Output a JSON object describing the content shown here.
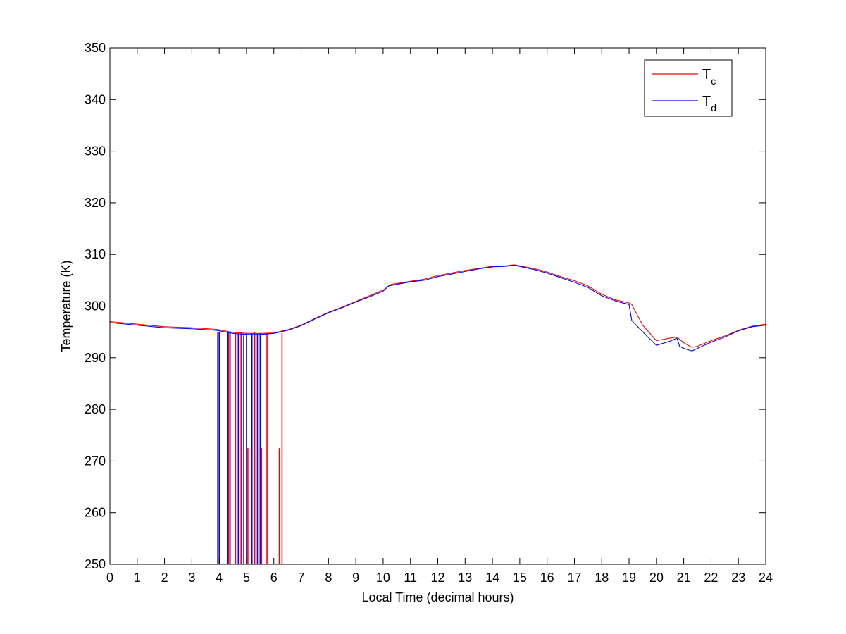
{
  "chart_data": {
    "type": "line",
    "xlabel": "Local Time (decimal hours)",
    "ylabel": "Temperature (K)",
    "xlim": [
      0,
      24
    ],
    "ylim": [
      250,
      350
    ],
    "xticks": [
      0,
      1,
      2,
      3,
      4,
      5,
      6,
      7,
      8,
      9,
      10,
      11,
      12,
      13,
      14,
      15,
      16,
      17,
      18,
      19,
      20,
      21,
      22,
      23,
      24
    ],
    "yticks": [
      250,
      260,
      270,
      280,
      290,
      300,
      310,
      320,
      330,
      340,
      350
    ],
    "grid": false,
    "legend_position": "top-right",
    "series": [
      {
        "name": "T",
        "name_subscript": "c",
        "color": "#ff0000",
        "x": [
          0,
          1,
          2,
          3,
          3.9,
          4.5,
          5,
          5.5,
          6,
          6.5,
          7,
          7.5,
          8,
          8.5,
          9,
          9.5,
          10,
          10.3,
          11,
          11.5,
          12,
          12.5,
          13,
          13.5,
          14,
          14.5,
          14.8,
          15.5,
          16,
          16.5,
          17,
          17.5,
          18,
          18.5,
          19,
          19.1,
          19.5,
          20,
          20.5,
          20.75,
          21,
          21.3,
          21.5,
          22,
          22.5,
          23,
          23.5,
          24
        ],
        "y": [
          297,
          296.5,
          296,
          295.8,
          295.5,
          294.9,
          294.7,
          294.7,
          294.8,
          295.4,
          296.3,
          297.6,
          298.8,
          299.8,
          300.9,
          302,
          303.1,
          304.2,
          304.8,
          305.2,
          305.9,
          306.4,
          306.9,
          307.3,
          307.7,
          307.8,
          308,
          307.3,
          306.6,
          305.7,
          304.9,
          303.9,
          302.3,
          301.2,
          300.6,
          300.3,
          296.3,
          293.3,
          293.8,
          294,
          292.9,
          292,
          292.2,
          293.3,
          294.2,
          295.3,
          296.1,
          296.5
        ],
        "dropouts": [
          {
            "x": 3.95,
            "y": 295
          },
          {
            "x": 4.35,
            "y": 295
          },
          {
            "x": 4.6,
            "y": 295
          },
          {
            "x": 4.8,
            "y": 295
          },
          {
            "x": 5.05,
            "y": 272.5
          },
          {
            "x": 5.3,
            "y": 295
          },
          {
            "x": 5.55,
            "y": 272.5
          },
          {
            "x": 5.75,
            "y": 294.7
          },
          {
            "x": 6.2,
            "y": 272.5
          },
          {
            "x": 6.3,
            "y": 294.8
          }
        ]
      },
      {
        "name": "T",
        "name_subscript": "d",
        "color": "#0000ff",
        "x": [
          0,
          1,
          2,
          3,
          3.9,
          4.5,
          5,
          5.5,
          6,
          6.5,
          7,
          7.5,
          8,
          8.5,
          9,
          9.5,
          10,
          10.2,
          11,
          11.5,
          12,
          12.5,
          13,
          13.5,
          14,
          14.5,
          14.8,
          15.5,
          16,
          16.5,
          17,
          17.5,
          18,
          18.5,
          19,
          19.1,
          19.5,
          20,
          20.5,
          20.75,
          20.85,
          21,
          21.3,
          21.5,
          22,
          22.5,
          23,
          23.5,
          24
        ],
        "y": [
          296.8,
          296.3,
          295.8,
          295.6,
          295.3,
          294.7,
          294.5,
          294.5,
          294.7,
          295.3,
          296.2,
          297.5,
          298.7,
          299.7,
          300.8,
          301.8,
          302.9,
          303.9,
          304.7,
          305,
          305.7,
          306.2,
          306.7,
          307.2,
          307.6,
          307.7,
          307.9,
          307.1,
          306.4,
          305.5,
          304.6,
          303.6,
          302,
          301,
          300.3,
          297.2,
          295,
          292.4,
          293.2,
          293.8,
          292.2,
          291.8,
          291.3,
          291.8,
          293,
          294,
          295.2,
          296,
          296.3
        ],
        "dropouts": [
          {
            "x": 3.95,
            "y": 295
          },
          {
            "x": 4.0,
            "y": 295
          },
          {
            "x": 4.3,
            "y": 295
          },
          {
            "x": 4.4,
            "y": 295
          },
          {
            "x": 4.7,
            "y": 294.7
          },
          {
            "x": 4.9,
            "y": 294.7
          },
          {
            "x": 5.0,
            "y": 294.7
          },
          {
            "x": 5.2,
            "y": 294.7
          },
          {
            "x": 5.4,
            "y": 294.7
          },
          {
            "x": 5.5,
            "y": 294.7
          }
        ]
      }
    ]
  }
}
